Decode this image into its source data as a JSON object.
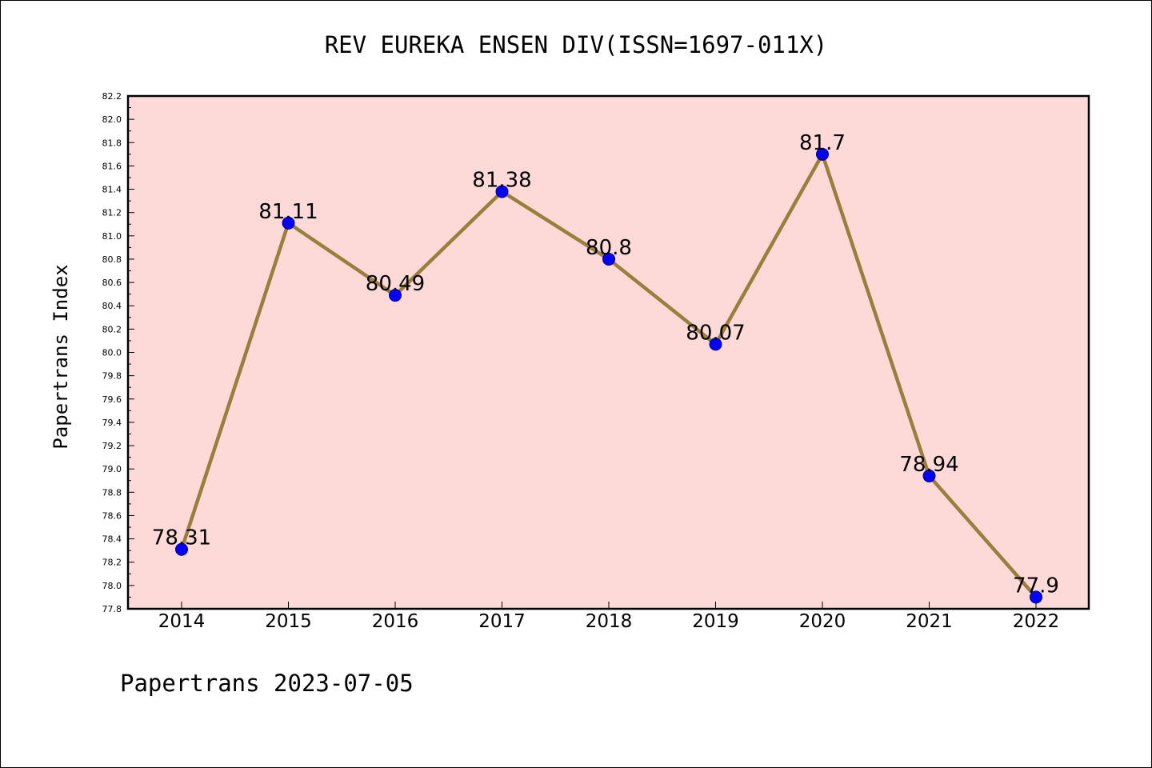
{
  "chart_data": {
    "type": "line",
    "title": "REV EUREKA ENSEN DIV(ISSN=1697-011X)",
    "xlabel": "",
    "ylabel": "Papertrans Index",
    "categories": [
      "2014",
      "2015",
      "2016",
      "2017",
      "2018",
      "2019",
      "2020",
      "2021",
      "2022"
    ],
    "series": [
      {
        "values": [
          78.31,
          81.11,
          80.49,
          81.38,
          80.8,
          80.07,
          81.7,
          78.94,
          77.9
        ]
      }
    ],
    "data_labels": [
      "78.31",
      "81.11",
      "80.49",
      "81.38",
      "80.8",
      "80.07",
      "81.7",
      "78.94",
      "77.9"
    ],
    "ylim": [
      77.8,
      82.2
    ],
    "yticks": [
      "77.8",
      "78.0",
      "78.2",
      "78.4",
      "78.6",
      "78.8",
      "79.0",
      "79.2",
      "79.4",
      "79.6",
      "79.8",
      "80.0",
      "80.2",
      "80.4",
      "80.6",
      "80.8",
      "81.0",
      "81.2",
      "81.4",
      "81.6",
      "81.8",
      "82.0",
      "82.2"
    ],
    "grid": false,
    "colors": {
      "plot_background": "#fddad8",
      "line": "#9b7e3a",
      "marker": "#0000ff"
    }
  },
  "footer": "Papertrans 2023-07-05"
}
